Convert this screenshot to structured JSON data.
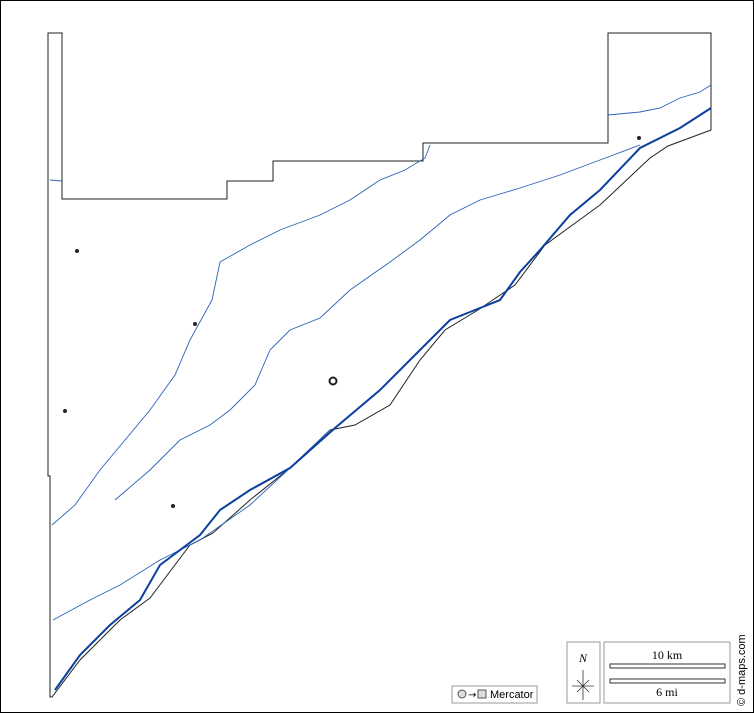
{
  "map": {
    "compass": "N",
    "scale_km": "10 km",
    "scale_mi": "6 mi",
    "projection": "Mercator",
    "credit": "© d-maps.com"
  }
}
